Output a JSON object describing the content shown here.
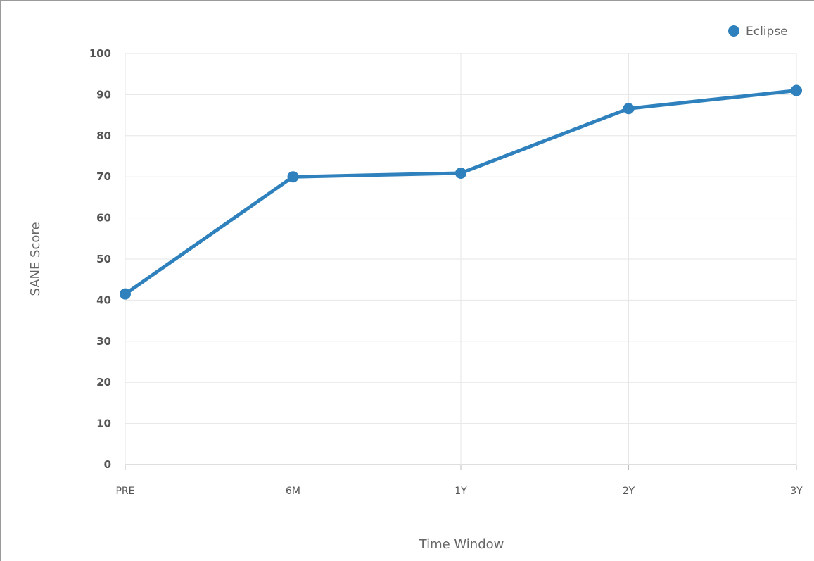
{
  "chart_data": {
    "type": "line",
    "title": "",
    "xlabel": "Time Window",
    "ylabel": "SANE Score",
    "categories": [
      "PRE",
      "6M",
      "1Y",
      "2Y",
      "3Y"
    ],
    "ylim": [
      0,
      100
    ],
    "yticks": [
      "0",
      "10",
      "20",
      "30",
      "40",
      "50",
      "60",
      "70",
      "80",
      "90",
      "100"
    ],
    "grid": true,
    "legend_position": "top-right",
    "series": [
      {
        "name": "Eclipse",
        "color": "#2e81bc",
        "values": [
          41.5,
          70.0,
          70.9,
          86.6,
          91.0
        ]
      }
    ]
  }
}
